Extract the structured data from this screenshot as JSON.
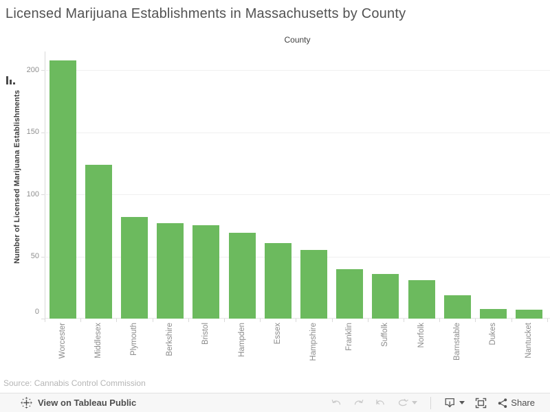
{
  "title": "Licensed Marijuana Establishments in Massachusetts by County",
  "chart_data": {
    "type": "bar",
    "title": "Licensed Marijuana Establishments in Massachusetts by County",
    "column_header": "County",
    "xlabel": "County",
    "ylabel": "Number of Licensed Marijuana Establishments",
    "categories": [
      "Worcester",
      "Middlesex",
      "Plymouth",
      "Berkshire",
      "Bristol",
      "Hampden",
      "Essex",
      "Hampshire",
      "Franklin",
      "Suffolk",
      "Norfolk",
      "Barnstable",
      "Dukes",
      "Nantucket"
    ],
    "values": [
      208,
      124,
      82,
      77,
      75,
      69,
      61,
      55,
      40,
      36,
      31,
      19,
      8,
      7
    ],
    "yticks": [
      0,
      50,
      100,
      150,
      200
    ],
    "ylim": [
      0,
      215
    ],
    "grid": true,
    "legend": "none",
    "bar_color": "#6cba5e",
    "sort": "descending"
  },
  "source_note": "Source: Cannabis Control Commission",
  "toolbar": {
    "view_on_label": "View on Tableau Public",
    "share_label": "Share",
    "buttons": {
      "undo": "Undo",
      "redo": "Redo",
      "reset": "Reset",
      "refresh": "Refresh",
      "download": "Download",
      "fullscreen": "Full Screen",
      "share": "Share"
    },
    "icons": [
      "tableau-logo",
      "undo-icon",
      "redo-icon",
      "reset-icon",
      "refresh-icon",
      "caret-down-icon",
      "download-icon",
      "fullscreen-icon",
      "share-icon"
    ]
  },
  "colors": {
    "bar": "#6cba5e",
    "gridline": "#f0f0f0",
    "axis_line": "#d9d9d9",
    "tick_label": "#8e8e8e",
    "title_text": "#525252",
    "toolbar_bg": "#f7f7f7",
    "toolbar_icon": "#5a5a5a",
    "toolbar_icon_disabled": "#c9c9c9"
  }
}
